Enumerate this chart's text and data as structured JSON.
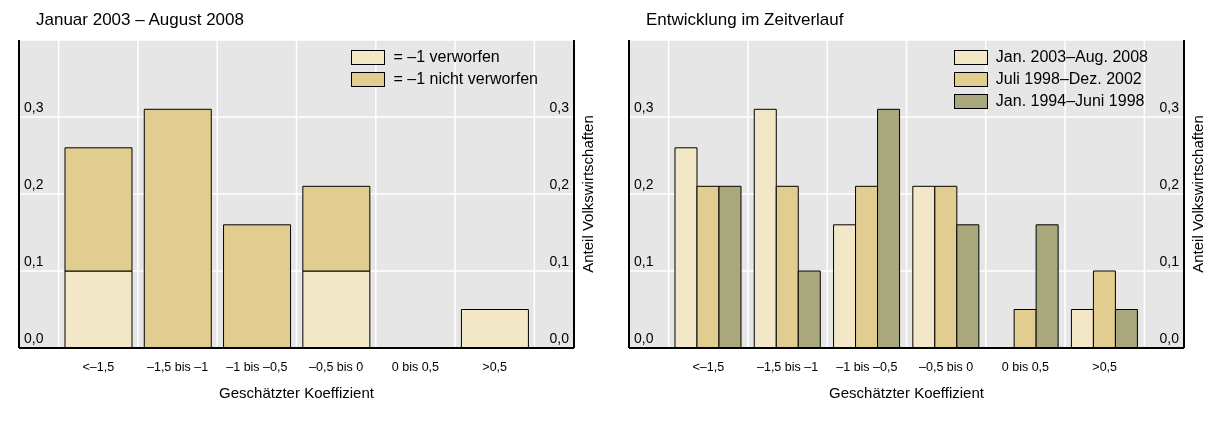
{
  "chart_data": [
    {
      "type": "bar",
      "title": "Januar 2003 – August 2008",
      "xlabel": "Geschätzter Koeffizient",
      "y2label": "Anteil Volkswirtschaften",
      "categories": [
        "<–1,5",
        "–1,5 bis –1",
        "–1 bis –0,5",
        "–0,5 bis 0",
        "0 bis 0,5",
        ">0,5"
      ],
      "stacked": true,
      "series": [
        {
          "name": "= –1 verworfen",
          "color": "#f2e8c8",
          "values": [
            0.1,
            0,
            0,
            0.1,
            0,
            0.05
          ]
        },
        {
          "name": "= –1 nicht verworfen",
          "color": "#e2cd90",
          "values": [
            0.16,
            0.31,
            0.16,
            0.11,
            0,
            0
          ]
        }
      ],
      "ylim": [
        0,
        0.4
      ],
      "yticks": [
        {
          "value": 0,
          "label": "0,0"
        },
        {
          "value": 0.1,
          "label": "0,1"
        },
        {
          "value": 0.2,
          "label": "0,2"
        },
        {
          "value": 0.3,
          "label": "0,3"
        }
      ],
      "y2lim": [
        0,
        0.4
      ],
      "y2ticks": [
        {
          "value": 0,
          "label": "0,0"
        },
        {
          "value": 0.1,
          "label": "0,1"
        },
        {
          "value": 0.2,
          "label": "0,2"
        },
        {
          "value": 0.3,
          "label": "0,3"
        }
      ],
      "grid": true,
      "legend": "top right"
    },
    {
      "type": "bar",
      "title": "Entwicklung im Zeitverlauf",
      "xlabel": "Geschätzter Koeffizient",
      "y2label": "Anteil Volkswirtschaften",
      "categories": [
        "<–1,5",
        "–1,5 bis –1",
        "–1 bis –0,5",
        "–0,5 bis 0",
        "0 bis 0,5",
        ">0,5"
      ],
      "series": [
        {
          "name": "Jan. 2003–Aug. 2008",
          "color": "#f2e8c8",
          "values": [
            0.26,
            0.31,
            0.16,
            0.21,
            0,
            0.05
          ]
        },
        {
          "name": "Juli 1998–Dez. 2002",
          "color": "#e2cd90",
          "values": [
            0.21,
            0.21,
            0.21,
            0.21,
            0.05,
            0.1
          ]
        },
        {
          "name": "Jan. 1994–Juni 1998",
          "color": "#a8a87c",
          "values": [
            0.21,
            0.1,
            0.31,
            0.16,
            0.16,
            0.05
          ]
        }
      ],
      "ylim": [
        0,
        0.4
      ],
      "yticks": [
        {
          "value": 0,
          "label": "0,0"
        },
        {
          "value": 0.1,
          "label": "0,1"
        },
        {
          "value": 0.2,
          "label": "0,2"
        },
        {
          "value": 0.3,
          "label": "0,3"
        }
      ],
      "y2lim": [
        0,
        0.4
      ],
      "y2ticks": [
        {
          "value": 0,
          "label": "0,0"
        },
        {
          "value": 0.1,
          "label": "0,1"
        },
        {
          "value": 0.2,
          "label": "0,2"
        },
        {
          "value": 0.3,
          "label": "0,3"
        }
      ],
      "grid": true,
      "legend": "top right"
    }
  ]
}
